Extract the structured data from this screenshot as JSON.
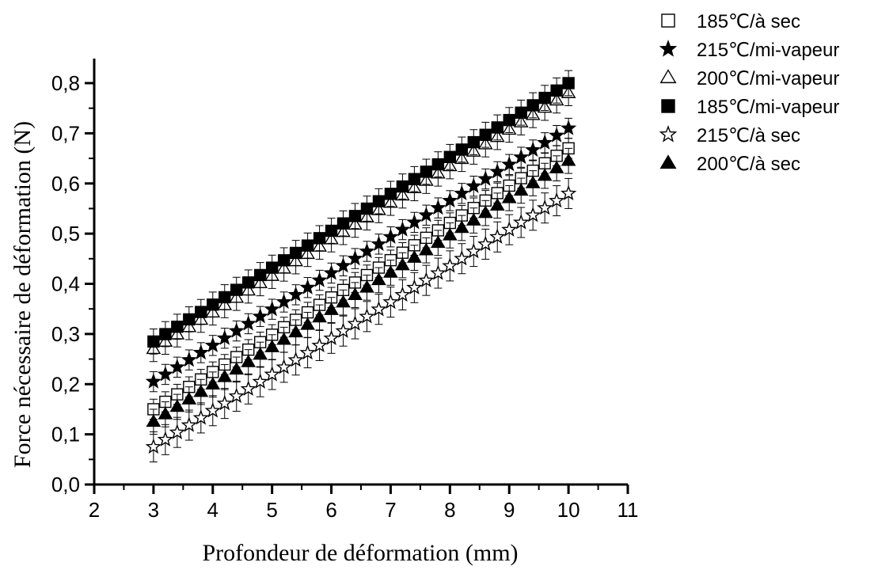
{
  "chart_data": {
    "type": "scatter",
    "title": "",
    "xlabel": "Profondeur de déformation (mm)",
    "ylabel": "Force nécessaire de déformation (N)",
    "xlim": [
      2,
      11
    ],
    "ylim": [
      0,
      0.85
    ],
    "xticks": [
      "2",
      "3",
      "4",
      "5",
      "6",
      "7",
      "8",
      "9",
      "10",
      "11"
    ],
    "yticks": [
      "0,0",
      "0,1",
      "0,2",
      "0,3",
      "0,4",
      "0,5",
      "0,6",
      "0,7",
      "0,8"
    ],
    "x_start": 3,
    "x_end": 10,
    "x_step": 0.2,
    "error_bars": true,
    "legend_position": "top-right",
    "series": [
      {
        "name": "185℃/à sec",
        "marker": "square-open",
        "y_start": 0.15,
        "y_end": 0.67,
        "error": 0.02
      },
      {
        "name": "215℃/mi-vapeur",
        "marker": "star-filled",
        "y_start": 0.205,
        "y_end": 0.71,
        "error": 0.02
      },
      {
        "name": "200℃/mi-vapeur",
        "marker": "triangle-open",
        "y_start": 0.27,
        "y_end": 0.78,
        "error": 0.025
      },
      {
        "name": "185℃/mi-vapeur",
        "marker": "square-filled",
        "y_start": 0.285,
        "y_end": 0.8,
        "error": 0.025
      },
      {
        "name": "215℃/à sec",
        "marker": "star-open",
        "y_start": 0.075,
        "y_end": 0.58,
        "error": 0.03
      },
      {
        "name": "200℃/à sec",
        "marker": "triangle-filled",
        "y_start": 0.125,
        "y_end": 0.645,
        "error": 0.025
      }
    ]
  }
}
